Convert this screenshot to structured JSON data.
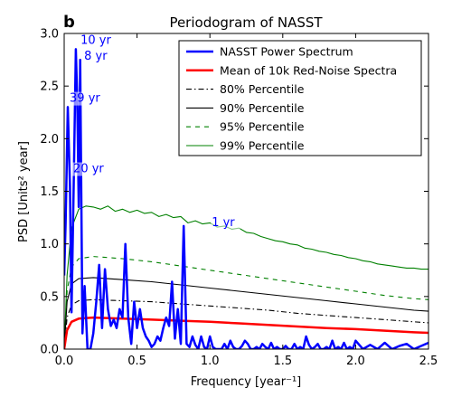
{
  "chart_data": {
    "type": "line",
    "panel_label": "b",
    "title": "Periodogram of NASST",
    "xlabel": "Frequency [year⁻¹]",
    "ylabel": "PSD [Units² year]",
    "xlim": [
      0,
      2.5
    ],
    "ylim": [
      0,
      3.0
    ],
    "x_ticks": [
      0,
      0.5,
      1,
      1.5,
      2,
      2.5
    ],
    "x_tick_labels": [
      "0.0",
      "0.5",
      "1.0",
      "1.5",
      "2.0",
      "2.5"
    ],
    "y_ticks": [
      0,
      0.5,
      1,
      1.5,
      2,
      2.5,
      3
    ],
    "y_tick_labels": [
      "0.0",
      "0.5",
      "1.0",
      "1.5",
      "2.0",
      "2.5",
      "3.0"
    ],
    "grid": false,
    "legend_position": "top-right",
    "series": [
      {
        "name": "NASST Power Spectrum",
        "color": "#0000ff",
        "dash": "solid",
        "x": [
          0.0,
          0.01,
          0.025,
          0.04,
          0.05,
          0.065,
          0.08,
          0.09,
          0.1,
          0.11,
          0.125,
          0.14,
          0.16,
          0.18,
          0.2,
          0.22,
          0.24,
          0.26,
          0.28,
          0.3,
          0.32,
          0.34,
          0.36,
          0.38,
          0.4,
          0.42,
          0.44,
          0.46,
          0.48,
          0.5,
          0.52,
          0.54,
          0.56,
          0.58,
          0.6,
          0.62,
          0.64,
          0.66,
          0.68,
          0.7,
          0.72,
          0.74,
          0.76,
          0.78,
          0.8,
          0.82,
          0.84,
          0.86,
          0.88,
          0.9,
          0.92,
          0.94,
          0.96,
          0.98,
          1.0,
          1.02,
          1.04,
          1.06,
          1.08,
          1.1,
          1.12,
          1.14,
          1.16,
          1.18,
          1.2,
          1.22,
          1.24,
          1.26,
          1.28,
          1.3,
          1.32,
          1.34,
          1.36,
          1.38,
          1.4,
          1.42,
          1.44,
          1.46,
          1.48,
          1.5,
          1.52,
          1.54,
          1.56,
          1.58,
          1.6,
          1.62,
          1.64,
          1.66,
          1.68,
          1.7,
          1.72,
          1.74,
          1.76,
          1.78,
          1.8,
          1.82,
          1.84,
          1.86,
          1.88,
          1.9,
          1.92,
          1.94,
          1.96,
          1.98,
          2.0,
          2.05,
          2.1,
          2.15,
          2.2,
          2.25,
          2.3,
          2.35,
          2.4,
          2.45,
          2.5
        ],
        "values": [
          0.7,
          1.2,
          2.3,
          1.55,
          0.35,
          1.55,
          2.85,
          2.35,
          1.35,
          2.75,
          0.15,
          0.6,
          0.0,
          0.0,
          0.15,
          0.45,
          0.8,
          0.2,
          0.76,
          0.38,
          0.22,
          0.28,
          0.2,
          0.38,
          0.3,
          1.0,
          0.3,
          0.05,
          0.45,
          0.2,
          0.38,
          0.2,
          0.12,
          0.08,
          0.02,
          0.05,
          0.12,
          0.08,
          0.2,
          0.3,
          0.22,
          0.64,
          0.1,
          0.38,
          0.05,
          1.17,
          0.05,
          0.02,
          0.12,
          0.04,
          0.0,
          0.12,
          0.02,
          0.0,
          0.12,
          0.02,
          0.0,
          0.0,
          0.0,
          0.05,
          0.0,
          0.08,
          0.02,
          0.0,
          0.0,
          0.03,
          0.08,
          0.05,
          0.0,
          0.0,
          0.02,
          0.0,
          0.05,
          0.02,
          0.0,
          0.06,
          0.0,
          0.02,
          0.0,
          0.0,
          0.03,
          0.0,
          0.0,
          0.05,
          0.0,
          0.02,
          0.0,
          0.12,
          0.04,
          0.0,
          0.02,
          0.05,
          0.0,
          0.0,
          0.02,
          0.0,
          0.08,
          0.0,
          0.02,
          0.0,
          0.06,
          0.0,
          0.02,
          0.0,
          0.08,
          0.0,
          0.04,
          0.0,
          0.06,
          0.0,
          0.03,
          0.05,
          0.0,
          0.03,
          0.06
        ]
      },
      {
        "name": "Mean of 10k Red-Noise Spectra",
        "color": "#ff0000",
        "dash": "solid",
        "x": [
          0.0,
          0.02,
          0.05,
          0.1,
          0.2,
          0.4,
          0.6,
          0.8,
          1.0,
          1.2,
          1.4,
          1.6,
          1.8,
          2.0,
          2.2,
          2.4,
          2.5
        ],
        "values": [
          0.0,
          0.18,
          0.26,
          0.29,
          0.3,
          0.29,
          0.28,
          0.27,
          0.26,
          0.245,
          0.23,
          0.215,
          0.2,
          0.19,
          0.175,
          0.16,
          0.155
        ]
      },
      {
        "name": "80% Percentile",
        "color": "#000000",
        "dash": "dashdot",
        "x": [
          0.0,
          0.02,
          0.05,
          0.1,
          0.2,
          0.4,
          0.6,
          0.8,
          1.0,
          1.2,
          1.4,
          1.6,
          1.8,
          2.0,
          2.2,
          2.4,
          2.5
        ],
        "values": [
          0.0,
          0.3,
          0.42,
          0.46,
          0.47,
          0.46,
          0.45,
          0.43,
          0.41,
          0.39,
          0.37,
          0.34,
          0.32,
          0.3,
          0.28,
          0.26,
          0.25
        ]
      },
      {
        "name": "90% Percentile",
        "color": "#000000",
        "dash": "solid",
        "x": [
          0.0,
          0.02,
          0.05,
          0.1,
          0.2,
          0.4,
          0.6,
          0.8,
          1.0,
          1.2,
          1.4,
          1.6,
          1.8,
          2.0,
          2.2,
          2.4,
          2.5
        ],
        "values": [
          0.0,
          0.45,
          0.62,
          0.67,
          0.68,
          0.66,
          0.64,
          0.61,
          0.58,
          0.55,
          0.52,
          0.49,
          0.46,
          0.43,
          0.4,
          0.37,
          0.36
        ]
      },
      {
        "name": "95% Percentile",
        "color": "#008000",
        "dash": "dashed",
        "x": [
          0.0,
          0.02,
          0.05,
          0.1,
          0.2,
          0.4,
          0.6,
          0.8,
          1.0,
          1.2,
          1.4,
          1.6,
          1.8,
          2.0,
          2.2,
          2.4,
          2.5
        ],
        "values": [
          0.0,
          0.55,
          0.78,
          0.86,
          0.88,
          0.86,
          0.83,
          0.79,
          0.75,
          0.71,
          0.67,
          0.63,
          0.59,
          0.55,
          0.51,
          0.48,
          0.47
        ]
      },
      {
        "name": "99% Percentile",
        "color": "#008000",
        "dash": "solid",
        "x": [
          0.0,
          0.02,
          0.05,
          0.1,
          0.15,
          0.2,
          0.25,
          0.3,
          0.35,
          0.4,
          0.45,
          0.5,
          0.55,
          0.6,
          0.65,
          0.7,
          0.75,
          0.8,
          0.85,
          0.9,
          0.95,
          1.0,
          1.05,
          1.1,
          1.15,
          1.2,
          1.25,
          1.3,
          1.35,
          1.4,
          1.45,
          1.5,
          1.55,
          1.6,
          1.65,
          1.7,
          1.75,
          1.8,
          1.85,
          1.9,
          1.95,
          2.0,
          2.05,
          2.1,
          2.15,
          2.2,
          2.25,
          2.3,
          2.35,
          2.4,
          2.45,
          2.5
        ],
        "values": [
          0.0,
          0.7,
          1.15,
          1.33,
          1.36,
          1.35,
          1.33,
          1.36,
          1.31,
          1.33,
          1.3,
          1.32,
          1.29,
          1.3,
          1.26,
          1.28,
          1.25,
          1.26,
          1.2,
          1.22,
          1.19,
          1.2,
          1.16,
          1.17,
          1.14,
          1.15,
          1.11,
          1.1,
          1.07,
          1.05,
          1.03,
          1.02,
          1.0,
          0.99,
          0.96,
          0.95,
          0.93,
          0.92,
          0.9,
          0.89,
          0.87,
          0.86,
          0.84,
          0.83,
          0.81,
          0.8,
          0.79,
          0.78,
          0.77,
          0.77,
          0.76,
          0.76
        ]
      }
    ],
    "annotations": [
      {
        "text": "10 yr",
        "x": 0.1,
        "y": 2.9
      },
      {
        "text": "8 yr",
        "x": 0.125,
        "y": 2.75
      },
      {
        "text": "39 yr",
        "x": 0.025,
        "y": 2.35
      },
      {
        "text": "20 yr",
        "x": 0.05,
        "y": 1.68
      },
      {
        "text": "1 yr",
        "x": 1.0,
        "y": 1.17
      }
    ]
  }
}
